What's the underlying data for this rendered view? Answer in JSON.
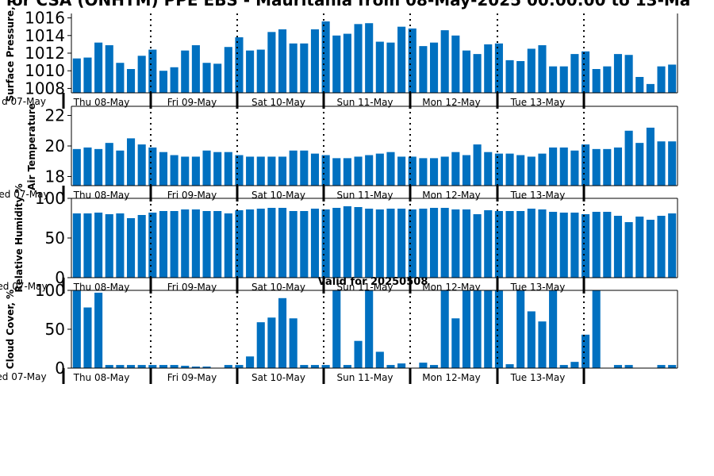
{
  "title": "lor CSA (ONHTM) PPE EBS - Mauritania from 08-May-2025 00:00:00 to 13-Ma",
  "valid_label": "Valid for 20250508",
  "colors": {
    "bar": "#0070c0",
    "axis": "#000000"
  },
  "first_day_label": "ed 07-May",
  "first_day_label_top": "d 07-May",
  "day_labels": [
    "Thu 08-May",
    "Fri 09-May",
    "Sat 10-May",
    "Sun 11-May",
    "Mon 12-May",
    "Tue 13-May"
  ],
  "chart_data": [
    {
      "type": "bar",
      "ylabel": "Surface Pressure, m",
      "ylim": [
        1007.5,
        1016.5
      ],
      "yticks": [
        1008,
        1010,
        1012,
        1014,
        1016
      ],
      "values": [
        1011.4,
        1011.5,
        1013.2,
        1012.9,
        1010.9,
        1010.2,
        1011.7,
        1012.4,
        1010.0,
        1010.4,
        1012.3,
        1012.9,
        1010.9,
        1010.8,
        1012.7,
        1013.8,
        1012.3,
        1012.4,
        1014.4,
        1014.7,
        1013.1,
        1013.1,
        1014.7,
        1015.6,
        1014.0,
        1014.2,
        1015.3,
        1015.4,
        1013.3,
        1013.2,
        1015.0,
        1014.8,
        1012.8,
        1013.2,
        1014.6,
        1014.0,
        1012.3,
        1011.9,
        1013.0,
        1013.1,
        1011.2,
        1011.1,
        1012.5,
        1012.9,
        1010.5,
        1010.5,
        1011.9,
        1012.2,
        1010.2,
        1010.5,
        1011.9,
        1011.8,
        1009.3,
        1008.5,
        1010.5,
        1010.7
      ]
    },
    {
      "type": "bar",
      "ylabel": "Air Temperature",
      "ylim": [
        17.4,
        22.6
      ],
      "yticks": [
        18,
        20,
        22
      ],
      "values": [
        19.8,
        19.9,
        19.8,
        20.2,
        19.7,
        20.5,
        20.1,
        19.9,
        19.6,
        19.4,
        19.3,
        19.3,
        19.7,
        19.6,
        19.6,
        19.4,
        19.3,
        19.3,
        19.3,
        19.3,
        19.7,
        19.7,
        19.5,
        19.4,
        19.2,
        19.2,
        19.3,
        19.4,
        19.5,
        19.6,
        19.3,
        19.3,
        19.2,
        19.2,
        19.3,
        19.6,
        19.4,
        20.1,
        19.6,
        19.5,
        19.5,
        19.4,
        19.3,
        19.5,
        19.9,
        19.9,
        19.7,
        20.1,
        19.8,
        19.8,
        19.9,
        21.0,
        20.2,
        21.2,
        20.3,
        20.3
      ]
    },
    {
      "type": "bar",
      "ylabel": "Relative Humidity %",
      "ylim": [
        0,
        100
      ],
      "yticks": [
        0,
        50,
        100
      ],
      "values": [
        81,
        81,
        82,
        80,
        81,
        75,
        79,
        82,
        84,
        84,
        86,
        86,
        84,
        84,
        81,
        85,
        86,
        87,
        88,
        88,
        84,
        84,
        87,
        86,
        88,
        90,
        89,
        87,
        86,
        87,
        87,
        86,
        87,
        88,
        88,
        86,
        86,
        80,
        85,
        84,
        84,
        84,
        87,
        86,
        83,
        82,
        82,
        80,
        83,
        83,
        78,
        70,
        77,
        73,
        78,
        81
      ]
    },
    {
      "type": "bar",
      "ylabel": "Cloud Cover, %",
      "ylim": [
        0,
        100
      ],
      "yticks": [
        0,
        50,
        100
      ],
      "values": [
        100,
        78,
        97,
        4,
        4,
        4,
        4,
        4,
        4,
        4,
        3,
        2,
        2,
        0,
        4,
        4,
        15,
        59,
        65,
        90,
        64,
        4,
        4,
        4,
        100,
        4,
        35,
        100,
        21,
        4,
        6,
        0,
        7,
        4,
        100,
        64,
        100,
        100,
        100,
        100,
        5,
        100,
        73,
        60,
        100,
        4,
        8,
        43,
        100,
        0,
        4,
        4,
        0,
        0,
        4,
        4
      ]
    }
  ]
}
